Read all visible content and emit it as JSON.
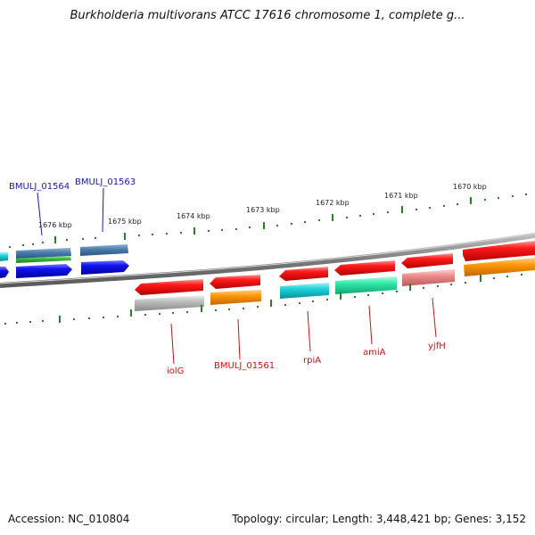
{
  "title": "Burkholderia multivorans ATCC 17616 chromosome 1, complete g...",
  "accession": "Accession: NC_010804",
  "topology": "Topology: circular; Length: 3,448,421 bp; Genes: 3,152",
  "ticks": [
    "1676 kbp",
    "1675 kbp",
    "1674 kbp",
    "1673 kbp",
    "1672 kbp",
    "1671 kbp",
    "1670 kbp"
  ],
  "gene_labels": {
    "top": [
      "BMULJ_01564",
      "BMULJ_01563"
    ],
    "bottom": [
      "iolG",
      "BMULJ_01561",
      "rpiA",
      "amiA",
      "yjfH"
    ]
  },
  "colors": {
    "backbone": "#8a8a8a",
    "tick": "#2e7d2e",
    "red": "#e8141b",
    "blue": "#1010e0",
    "steel": "#4a7aab",
    "cyan": "#1ccfd8",
    "green": "#35c03a",
    "orange": "#ff9505",
    "gray": "#b8b8b8",
    "mint": "#2ee8a8",
    "pink": "#ee8a8a"
  }
}
